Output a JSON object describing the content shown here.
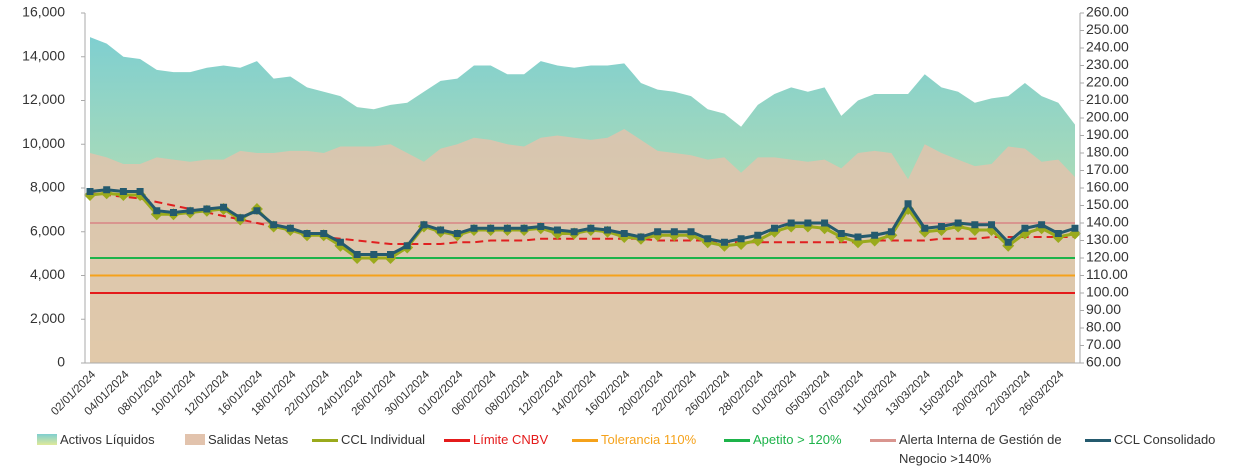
{
  "chart_data": {
    "type": "combo",
    "categories": [
      "02/01/2024",
      null,
      "04/01/2024",
      null,
      "08/01/2024",
      null,
      "10/01/2024",
      null,
      "12/01/2024",
      null,
      "16/01/2024",
      null,
      "18/01/2024",
      null,
      "22/01/2024",
      null,
      "24/01/2024",
      null,
      "26/01/2024",
      null,
      "30/01/2024",
      null,
      "01/02/2024",
      null,
      "06/02/2024",
      null,
      "08/02/2024",
      null,
      "12/02/2024",
      null,
      "14/02/2024",
      null,
      "16/02/2024",
      null,
      "20/02/2024",
      null,
      "22/02/2024",
      null,
      "26/02/2024",
      null,
      "28/02/2024",
      null,
      "01/03/2024",
      null,
      "05/03/2024",
      null,
      "07/03/2024",
      null,
      "11/03/2024",
      null,
      "13/03/2024",
      null,
      "15/03/2024",
      null,
      "20/03/2024",
      null,
      "22/03/2024",
      null,
      "26/03/2024",
      null
    ],
    "series": [
      {
        "name": "Activos Líquidos",
        "type": "area",
        "axis": "y",
        "color": "#7fcfd0",
        "color2": "#dfe99a",
        "values": [
          14900,
          14600,
          14000,
          13900,
          13400,
          13300,
          13300,
          13500,
          13600,
          13500,
          13800,
          13000,
          13100,
          12600,
          12400,
          12200,
          11700,
          11600,
          11800,
          11900,
          12400,
          12900,
          13000,
          13600,
          13600,
          13200,
          13200,
          13800,
          13600,
          13500,
          13600,
          13600,
          13700,
          12800,
          12500,
          12400,
          12200,
          11600,
          11400,
          10800,
          11800,
          12300,
          12600,
          12400,
          12600,
          11300,
          12000,
          12300,
          12300,
          12300,
          13200,
          12600,
          12400,
          11900,
          12100,
          12200,
          12800,
          12200,
          11900,
          10900
        ]
      },
      {
        "name": "Salidas Netas",
        "type": "area",
        "axis": "y",
        "color": "#e2c3ad",
        "values": [
          9600,
          9400,
          9100,
          9100,
          9400,
          9300,
          9200,
          9300,
          9300,
          9700,
          9600,
          9600,
          9700,
          9700,
          9600,
          9900,
          9900,
          9900,
          10000,
          9600,
          9200,
          9800,
          10000,
          10300,
          10200,
          10000,
          9900,
          10300,
          10400,
          10300,
          10200,
          10300,
          10700,
          10200,
          9700,
          9600,
          9500,
          9300,
          9400,
          8700,
          9400,
          9400,
          9300,
          9200,
          9300,
          8900,
          9600,
          9700,
          9600,
          8400,
          10000,
          9600,
          9300,
          9000,
          9100,
          9900,
          9800,
          9200,
          9300,
          8500
        ]
      },
      {
        "name": "CCL Individual",
        "type": "line",
        "marker": "diamond",
        "axis": "y2",
        "color": "#9aaa1c",
        "values": [
          156,
          157,
          156,
          156,
          145,
          145,
          146,
          147,
          148,
          142,
          148,
          138,
          136,
          133,
          133,
          127,
          120,
          120,
          120,
          126,
          138,
          135,
          133,
          136,
          136,
          136,
          136,
          137,
          134,
          134,
          136,
          135,
          132,
          131,
          133,
          133,
          133,
          129,
          127,
          128,
          130,
          135,
          138,
          138,
          137,
          132,
          129,
          130,
          133,
          148,
          135,
          136,
          138,
          136,
          136,
          127,
          134,
          137,
          132,
          134
        ]
      },
      {
        "type": "line",
        "dashed": true,
        "axis": "y2",
        "color": "#e02020",
        "values": [
          157,
          156,
          155,
          154,
          152,
          150,
          148,
          146,
          144,
          142,
          140,
          138,
          136,
          134,
          132,
          131,
          130,
          129,
          128,
          128,
          128,
          128,
          129,
          129,
          130,
          130,
          130,
          131,
          131,
          131,
          131,
          131,
          131,
          131,
          130,
          130,
          130,
          130,
          129,
          129,
          129,
          129,
          129,
          129,
          129,
          129,
          129,
          130,
          130,
          130,
          130,
          131,
          131,
          131,
          132,
          132,
          132,
          132,
          132,
          132
        ]
      },
      {
        "name": "CCL Consolidado",
        "type": "line",
        "marker": "square",
        "axis": "y2",
        "color": "#245a6e",
        "values": [
          158,
          159,
          158,
          158,
          147,
          146,
          147,
          148,
          149,
          143,
          147,
          139,
          137,
          134,
          134,
          129,
          122,
          122,
          122,
          127,
          139,
          136,
          134,
          137,
          137,
          137,
          137,
          138,
          136,
          135,
          137,
          136,
          134,
          132,
          135,
          135,
          135,
          131,
          129,
          131,
          133,
          137,
          140,
          140,
          140,
          134,
          132,
          133,
          135,
          151,
          137,
          138,
          140,
          139,
          139,
          129,
          137,
          139,
          134,
          137
        ]
      }
    ],
    "reference_lines": [
      {
        "name": "Límite CNBV",
        "value": 100,
        "color": "#e41b1b",
        "axis": "y2"
      },
      {
        "name": "Tolerancia 110%",
        "value": 110,
        "color": "#f5a21b",
        "axis": "y2"
      },
      {
        "name": "Apetito > 120%",
        "value": 120,
        "color": "#1db34a",
        "axis": "y2"
      },
      {
        "name": "Alerta Interna de Gestión de Negocio >140%",
        "value": 140,
        "color": "#d9958f",
        "axis": "y2"
      }
    ],
    "ylim": [
      0,
      16000
    ],
    "yticks": [
      0,
      {
        "value": 2000,
        "label": "2,000"
      },
      {
        "value": 4000,
        "label": "4,000"
      },
      {
        "value": 6000,
        "label": "6,000"
      },
      {
        "value": 8000,
        "label": "8,000"
      },
      {
        "value": 10000,
        "label": "10,000"
      },
      {
        "value": 12000,
        "label": "12,000"
      },
      {
        "value": 14000,
        "label": "14,000"
      },
      {
        "value": 16000,
        "label": "16,000"
      }
    ],
    "y2lim": [
      60,
      260
    ],
    "y2ticks": [
      {
        "value": 60,
        "label": "60.00"
      },
      {
        "value": 70,
        "label": "70.00"
      },
      {
        "value": 80,
        "label": "80.00"
      },
      {
        "value": 90,
        "label": "90.00"
      },
      {
        "value": 100,
        "label": "100.00"
      },
      {
        "value": 110,
        "label": "110.00"
      },
      {
        "value": 120,
        "label": "120.00"
      },
      {
        "value": 130,
        "label": "130.00"
      },
      {
        "value": 140,
        "label": "140.00"
      },
      {
        "value": 150,
        "label": "150.00"
      },
      {
        "value": 160,
        "label": "160.00"
      },
      {
        "value": 170,
        "label": "170.00"
      },
      {
        "value": 180,
        "label": "180.00"
      },
      {
        "value": 190,
        "label": "190.00"
      },
      {
        "value": 200,
        "label": "200.00"
      },
      {
        "value": 210,
        "label": "210.00"
      },
      {
        "value": 220,
        "label": "220.00"
      },
      {
        "value": 230,
        "label": "230.00"
      },
      {
        "value": 240,
        "label": "240.00"
      },
      {
        "value": 250,
        "label": "250.00"
      },
      {
        "value": 260,
        "label": "260.00"
      }
    ],
    "grid": false
  }
}
